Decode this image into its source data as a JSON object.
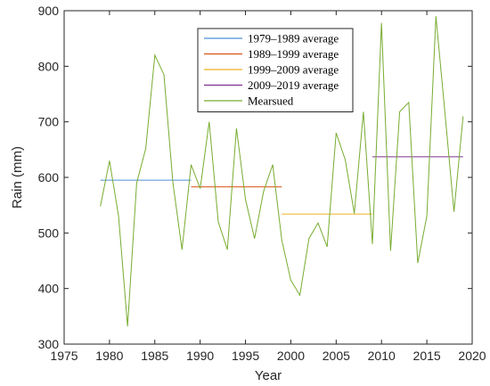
{
  "chart_data": {
    "type": "line",
    "xlabel": "Year",
    "ylabel": "Rain (mm)",
    "xlim": [
      1975,
      2020
    ],
    "ylim": [
      300,
      900
    ],
    "xticks": [
      "1975",
      "1980",
      "1985",
      "1990",
      "1995",
      "2000",
      "2005",
      "2010",
      "2015",
      "2020"
    ],
    "yticks": [
      "300",
      "400",
      "500",
      "600",
      "700",
      "800",
      "900"
    ],
    "grid": false,
    "legend_position": "top-center",
    "series": [
      {
        "name": "1979–1989 average",
        "color": "#4a90d9",
        "x": [
          1979,
          1989
        ],
        "y": [
          595,
          595
        ]
      },
      {
        "name": "1989–1999 average",
        "color": "#d95319",
        "x": [
          1989,
          1999
        ],
        "y": [
          583,
          583
        ]
      },
      {
        "name": "1999–2009 average",
        "color": "#edb120",
        "x": [
          1999,
          2009
        ],
        "y": [
          534,
          534
        ]
      },
      {
        "name": "2009–2019 average",
        "color": "#7e2f8e",
        "x": [
          2009,
          2019
        ],
        "y": [
          637,
          637
        ]
      },
      {
        "name": "Mearsued",
        "color": "#77ac30",
        "x": [
          1979,
          1980,
          1981,
          1982,
          1983,
          1984,
          1985,
          1986,
          1987,
          1988,
          1989,
          1990,
          1991,
          1992,
          1993,
          1994,
          1995,
          1996,
          1997,
          1998,
          1999,
          2000,
          2001,
          2002,
          2003,
          2004,
          2005,
          2006,
          2007,
          2008,
          2009,
          2010,
          2011,
          2012,
          2013,
          2014,
          2015,
          2016,
          2017,
          2018,
          2019
        ],
        "y": [
          548,
          630,
          530,
          332,
          590,
          652,
          820,
          785,
          590,
          470,
          623,
          580,
          700,
          520,
          470,
          688,
          560,
          490,
          575,
          623,
          487,
          415,
          388,
          490,
          518,
          475,
          680,
          632,
          535,
          718,
          480,
          878,
          468,
          718,
          735,
          446,
          530,
          890,
          715,
          538,
          710
        ]
      }
    ]
  }
}
